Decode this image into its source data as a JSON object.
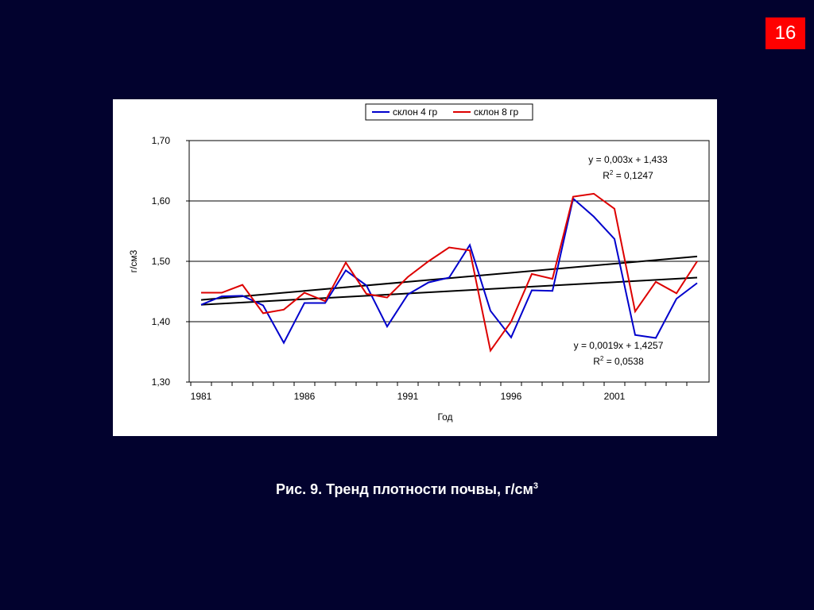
{
  "slide": {
    "number": "16",
    "badge_color": "#ff0000",
    "background": "#02022e"
  },
  "caption": {
    "text": "Рис. 9. Тренд плотности почвы, г/см",
    "sup": "3"
  },
  "chart_data": {
    "type": "line",
    "title": "",
    "xlabel": "Год",
    "ylabel": "г/см3",
    "ylim": [
      1.3,
      1.7
    ],
    "yticks": [
      "1,30",
      "1,40",
      "1,50",
      "1,60",
      "1,70"
    ],
    "xticks": [
      "1981",
      "1986",
      "1991",
      "1996",
      "2001"
    ],
    "x": [
      1981,
      1982,
      1983,
      1984,
      1985,
      1986,
      1987,
      1988,
      1989,
      1990,
      1991,
      1992,
      1993,
      1994,
      1995,
      1996,
      1997,
      1998,
      1999,
      2000,
      2001,
      2002,
      2003,
      2004,
      2005
    ],
    "grid": "horizontal",
    "legend_position": "top",
    "series": [
      {
        "name": "склон 4 гр",
        "color": "#0000cc",
        "values": [
          1.428,
          1.442,
          1.443,
          1.427,
          1.365,
          1.431,
          1.431,
          1.485,
          1.46,
          1.392,
          1.445,
          1.465,
          1.473,
          1.527,
          1.418,
          1.374,
          1.452,
          1.451,
          1.604,
          1.574,
          1.537,
          1.378,
          1.373,
          1.438,
          1.464
        ]
      },
      {
        "name": "склон 8 гр",
        "color": "#dd0000",
        "values": [
          1.448,
          1.448,
          1.461,
          1.414,
          1.42,
          1.448,
          1.434,
          1.498,
          1.446,
          1.44,
          1.474,
          1.5,
          1.523,
          1.518,
          1.352,
          1.4,
          1.479,
          1.471,
          1.607,
          1.612,
          1.587,
          1.417,
          1.466,
          1.447,
          1.5
        ]
      }
    ],
    "trendlines": [
      {
        "color": "#000000",
        "values": [
          1.436,
          1.508
        ],
        "equation": "y = 0,003x + 1,433",
        "r2_label": "R",
        "r2_sup": "2",
        "r2_value": " = 0,1247"
      },
      {
        "color": "#000000",
        "values": [
          1.428,
          1.473
        ],
        "equation": "y = 0,0019x + 1,4257",
        "r2_label": "R",
        "r2_sup": "2",
        "r2_value": " = 0,0538"
      }
    ]
  }
}
